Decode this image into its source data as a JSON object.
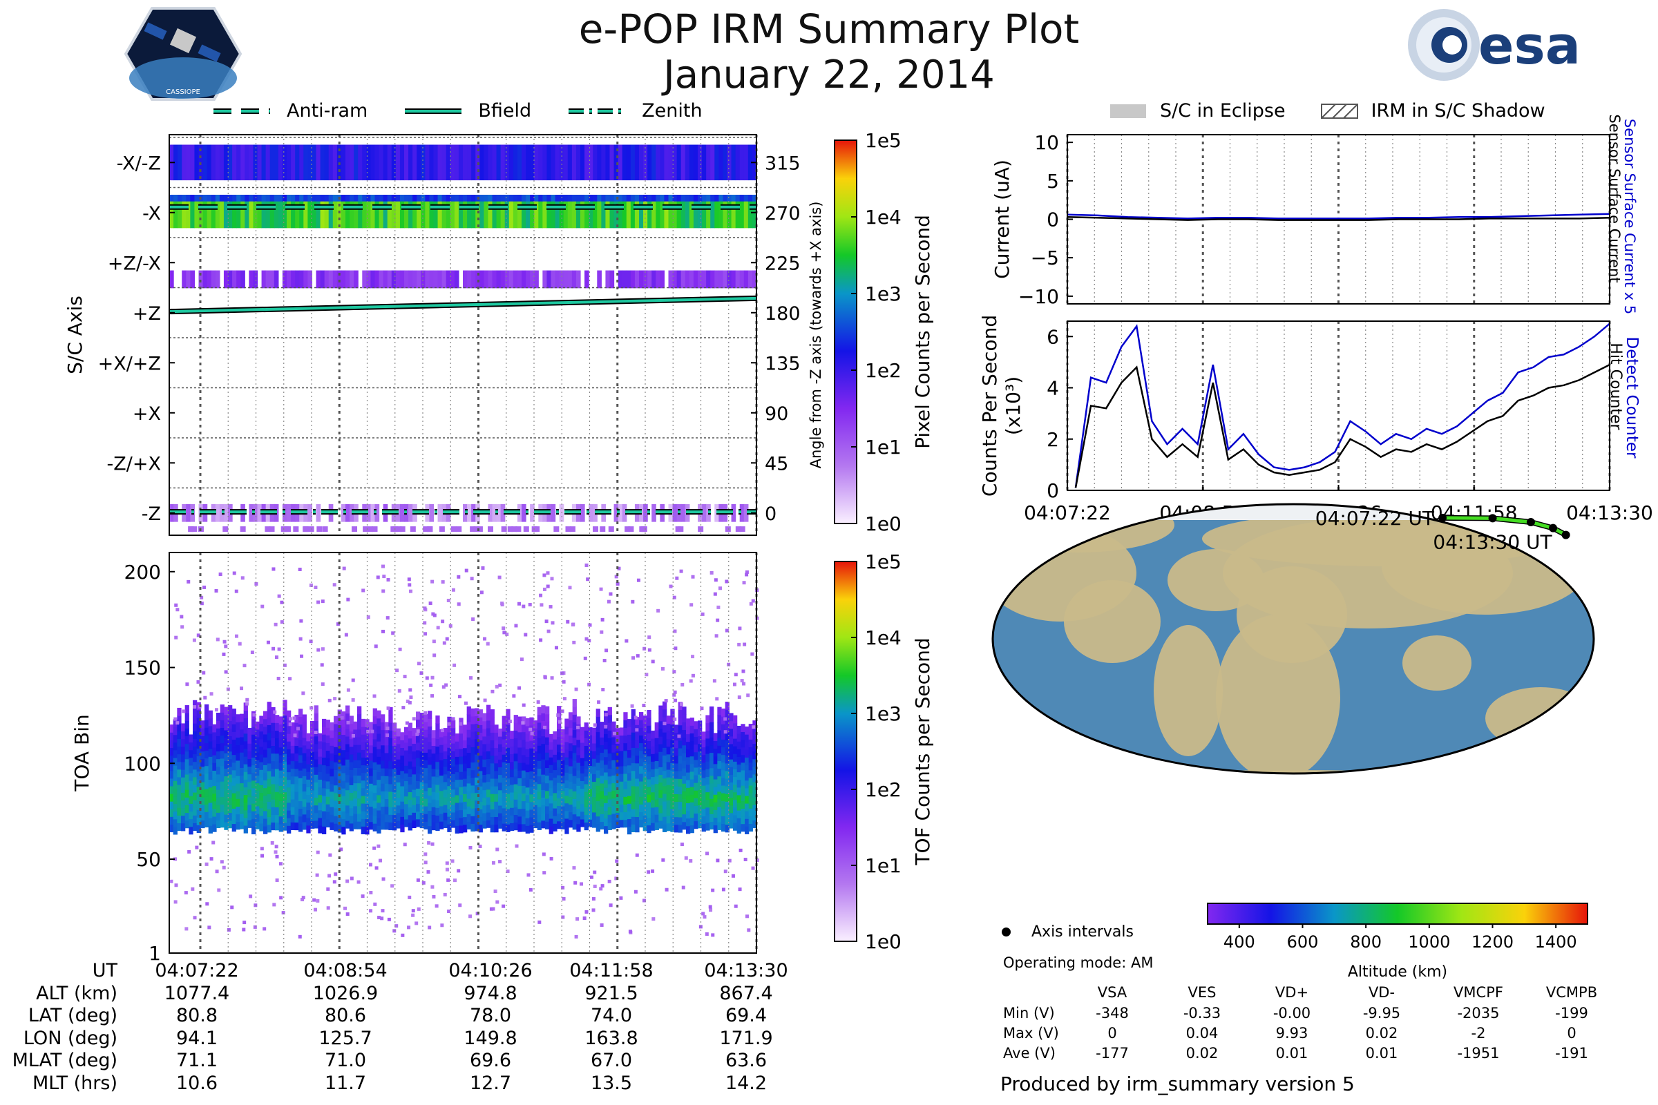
{
  "header": {
    "title": "e-POP IRM Summary Plot",
    "date": "January 22, 2014",
    "logo_left_text": "CASSIOPE",
    "logo_right_text": "esa"
  },
  "legends": {
    "direction": [
      "Anti-ram",
      "Bfield",
      "Zenith"
    ],
    "shading": [
      "S/C in Eclipse",
      "IRM in S/C Shadow"
    ],
    "map_marker": "Axis intervals"
  },
  "colors": {
    "guide_line": "#1ec8a0",
    "current_sensor": "#0000cc",
    "current_surface": "#000000",
    "orbit_track": "#44dd22",
    "ocean": "#4f89b6",
    "land": "#c9b98a"
  },
  "table": {
    "row_labels": [
      "UT",
      "ALT (km)",
      "LAT (deg)",
      "LON (deg)",
      "MLAT (deg)",
      "MLT (hrs)"
    ],
    "columns": [
      [
        "04:07:22",
        "1077.4",
        "80.8",
        "94.1",
        "71.1",
        "10.6"
      ],
      [
        "04:08:54",
        "1026.9",
        "80.6",
        "125.7",
        "71.0",
        "11.7"
      ],
      [
        "04:10:26",
        "974.8",
        "78.0",
        "149.8",
        "69.6",
        "12.7"
      ],
      [
        "04:11:58",
        "921.5",
        "74.0",
        "163.8",
        "67.0",
        "13.5"
      ],
      [
        "04:13:30",
        "867.4",
        "69.4",
        "171.9",
        "63.6",
        "14.2"
      ]
    ]
  },
  "voltages": {
    "operating_mode": "Operating mode: AM",
    "headers": [
      "VSA",
      "VES",
      "VD+",
      "VD-",
      "VMCPF",
      "VCMPB"
    ],
    "rows": [
      {
        "label": "Min (V)",
        "values": [
          "-348",
          "-0.33",
          "-0.00",
          "-9.95",
          "-2035",
          "-199"
        ]
      },
      {
        "label": "Max (V)",
        "values": [
          "0",
          "0.04",
          "9.93",
          "0.02",
          "-2",
          "0"
        ]
      },
      {
        "label": "Ave (V)",
        "values": [
          "-177",
          "0.02",
          "0.01",
          "0.01",
          "-1951",
          "-191"
        ]
      }
    ]
  },
  "footer": "Produced by irm_summary version 5",
  "chart_data": [
    {
      "type": "heatmap",
      "name": "sc-axis",
      "ylabel": "S/C Axis",
      "y_categories": [
        "-X/-Z",
        "-X",
        "+Z/-X",
        "+Z",
        "+X/+Z",
        "+X",
        "-Z/+X",
        "-Z"
      ],
      "right_ylabel": "Angle from -Z axis (towards +X axis)",
      "right_ticks": [
        315,
        270,
        225,
        180,
        135,
        90,
        45,
        0
      ],
      "ylim": [
        -20,
        340
      ],
      "colorbar_label": "Pixel Counts per Second",
      "colorbar_ticks": [
        "1e5",
        "1e4",
        "1e3",
        "1e2",
        "1e1",
        "1e0"
      ],
      "bands": [
        {
          "label": "-X/-Z",
          "intensity": "blue-purple"
        },
        {
          "label": "-X",
          "intensity": "green-yellow"
        },
        {
          "label": "+Z/-X",
          "intensity": "purple"
        },
        {
          "label": "-Z",
          "intensity": "light-purple"
        }
      ],
      "guide_lines": [
        {
          "name": "Anti-ram",
          "angle": 275
        },
        {
          "name": "Bfield",
          "angle_start": 181,
          "angle_end": 193
        },
        {
          "name": "Zenith",
          "angle": 1
        }
      ]
    },
    {
      "type": "heatmap",
      "name": "toa-spectrogram",
      "ylabel": "TOA Bin",
      "yticks": [
        1,
        50,
        100,
        150,
        200
      ],
      "ylim": [
        1,
        210
      ],
      "core_bin_range": [
        65,
        125
      ],
      "peak_bin": 80,
      "colorbar_label": "TOF Counts per Second",
      "colorbar_ticks": [
        "1e5",
        "1e4",
        "1e3",
        "1e2",
        "1e1",
        "1e0"
      ]
    },
    {
      "type": "line",
      "name": "current",
      "ylabel": "Current (uA)",
      "yticks": [
        10,
        5,
        0,
        -5,
        -10
      ],
      "ylim": [
        -11,
        11
      ],
      "right_labels": [
        "Sensor Surface Current x 5",
        "Sensor Surface Current"
      ],
      "series": [
        {
          "name": "Sensor Surface Current x 5",
          "values": [
            0.6,
            0.5,
            0.3,
            0.2,
            0.1,
            0.2,
            0.2,
            0.1,
            0.1,
            0.1,
            0.1,
            0.2,
            0.2,
            0.3,
            0.3,
            0.4,
            0.5,
            0.6,
            0.7
          ]
        },
        {
          "name": "Sensor Surface Current",
          "values": [
            0.3,
            0.2,
            0.1,
            0.0,
            -0.1,
            0.0,
            0.0,
            -0.1,
            -0.1,
            -0.1,
            -0.1,
            0.0,
            0.0,
            0.0,
            0.1,
            0.1,
            0.1,
            0.1,
            0.2
          ]
        }
      ]
    },
    {
      "type": "line",
      "name": "counts",
      "ylabel": "Counts Per Second (x10³)",
      "yticks": [
        6,
        4,
        2,
        0
      ],
      "ylim": [
        0,
        6.6
      ],
      "right_labels": [
        "Detect Counter",
        "Hit Counter"
      ],
      "xticks": [
        "04:07:22",
        "04:08:54",
        "04:10:26",
        "04:11:58",
        "04:13:30"
      ],
      "series": [
        {
          "name": "Detect Counter",
          "values": [
            0.1,
            4.4,
            4.2,
            5.6,
            6.4,
            2.7,
            1.8,
            2.4,
            1.8,
            4.9,
            1.6,
            2.2,
            1.4,
            0.9,
            0.8,
            0.9,
            1.1,
            1.5,
            2.7,
            2.3,
            1.8,
            2.2,
            2.0,
            2.4,
            2.2,
            2.5,
            3.0,
            3.5,
            3.8,
            4.6,
            4.8,
            5.2,
            5.3,
            5.6,
            6.0,
            6.5
          ]
        },
        {
          "name": "Hit Counter",
          "values": [
            0.1,
            3.3,
            3.2,
            4.2,
            4.8,
            2.0,
            1.3,
            1.8,
            1.3,
            4.2,
            1.2,
            1.6,
            1.0,
            0.7,
            0.6,
            0.7,
            0.8,
            1.1,
            2.0,
            1.7,
            1.3,
            1.6,
            1.5,
            1.8,
            1.6,
            1.9,
            2.3,
            2.7,
            2.9,
            3.5,
            3.7,
            4.0,
            4.1,
            4.3,
            4.6,
            4.9
          ]
        }
      ]
    },
    {
      "type": "scatter",
      "name": "orbit-map",
      "start_label": "04:07:22 UT",
      "end_label": "04:13:30 UT",
      "colorbar_label": "Altitude (km)",
      "colorbar_ticks": [
        400,
        600,
        800,
        1000,
        1200,
        1400
      ],
      "points": [
        {
          "lon": 94.1,
          "lat": 80.8
        },
        {
          "lon": 125.7,
          "lat": 80.6
        },
        {
          "lon": 149.8,
          "lat": 78.0
        },
        {
          "lon": 163.8,
          "lat": 74.0
        },
        {
          "lon": 171.9,
          "lat": 69.4
        }
      ]
    }
  ]
}
